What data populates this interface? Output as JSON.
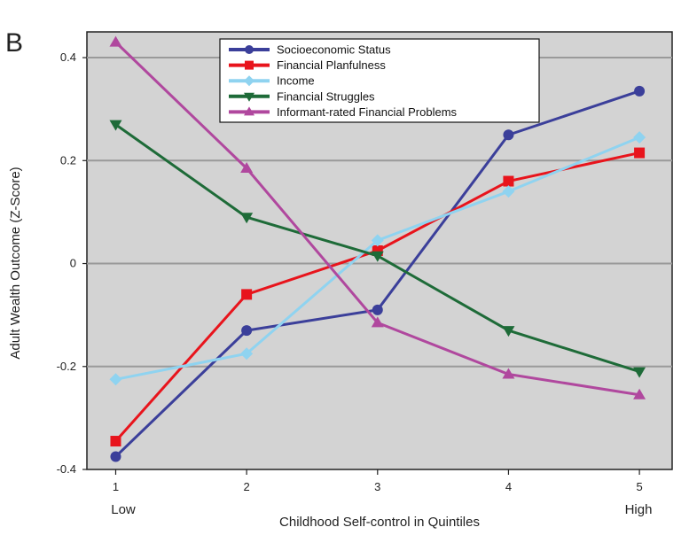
{
  "chart_data": {
    "type": "line",
    "panel_label": "B",
    "title": "",
    "xlabel": "Childhood Self-control in Quintiles",
    "ylabel": "Adult Wealth Outcome (Z-Score)",
    "x": [
      1,
      2,
      3,
      4,
      5
    ],
    "x_tick_labels": [
      "1",
      "2",
      "3",
      "4",
      "5"
    ],
    "x_end_labels": {
      "low": "Low",
      "high": "High"
    },
    "xlim": [
      0.78,
      5.25
    ],
    "ylim": [
      -0.4,
      0.45
    ],
    "y_ticks": [
      -0.4,
      -0.2,
      0,
      0.2,
      0.4
    ],
    "y_tick_labels": [
      "-0.4",
      "-0.2",
      "0",
      "0.2",
      "0.4"
    ],
    "grid": true,
    "legend_position": "top-center",
    "background": "#d3d3d3",
    "series": [
      {
        "name": "Socioeconomic Status",
        "color": "#3b3f9a",
        "marker": "circle",
        "values": [
          -0.375,
          -0.13,
          -0.09,
          0.25,
          0.335
        ]
      },
      {
        "name": "Financial Planfulness",
        "color": "#e8141c",
        "marker": "square",
        "values": [
          -0.345,
          -0.06,
          0.025,
          0.16,
          0.215
        ]
      },
      {
        "name": "Income",
        "color": "#8fd3f0",
        "marker": "diamond",
        "values": [
          -0.225,
          -0.175,
          0.045,
          0.14,
          0.245
        ]
      },
      {
        "name": "Financial Struggles",
        "color": "#1e6b38",
        "marker": "triangle-down",
        "values": [
          0.27,
          0.09,
          0.015,
          -0.13,
          -0.21
        ]
      },
      {
        "name": "Informant-rated Financial Problems",
        "color": "#b0489e",
        "marker": "triangle-up",
        "values": [
          0.43,
          0.185,
          -0.115,
          -0.215,
          -0.255
        ]
      }
    ]
  }
}
